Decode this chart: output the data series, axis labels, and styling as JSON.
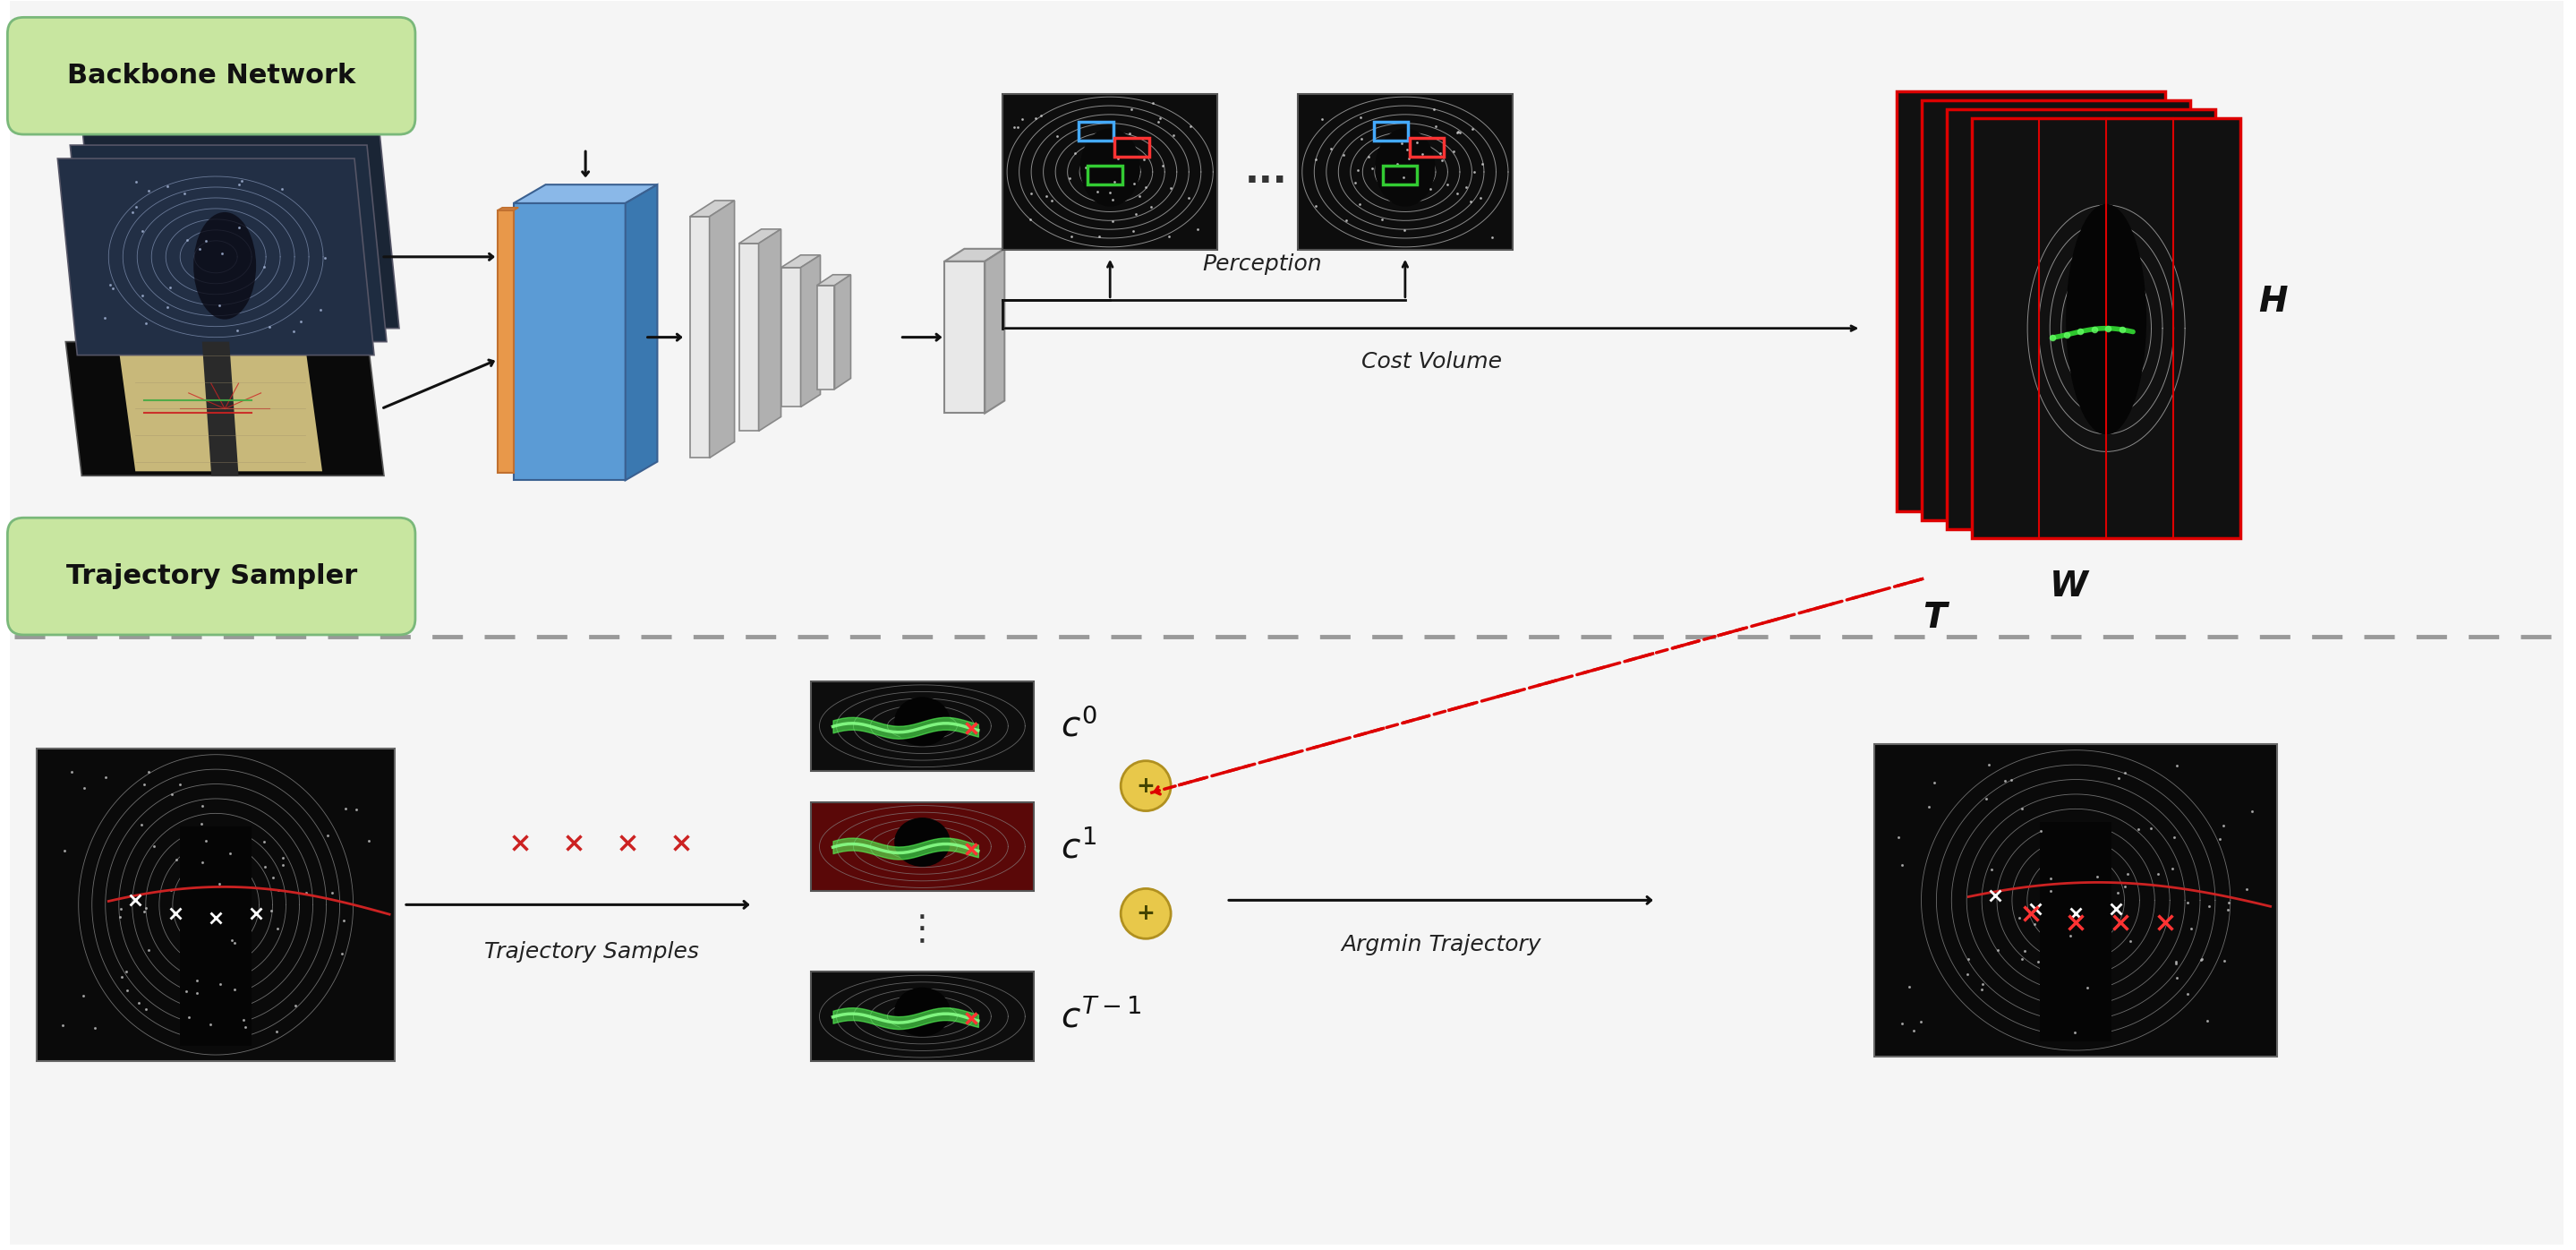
{
  "bg_color": "#ffffff",
  "top_label": "Backbone Network",
  "bottom_label": "Trajectory Sampler",
  "label_bg": "#c8e6a0",
  "label_edge": "#7ab87a",
  "divider_color": "#999999",
  "perception_label": "Perception",
  "cost_volume_label": "Cost Volume",
  "trajectory_samples_label": "Trajectory Samples",
  "argmin_label": "Argmin Trajectory",
  "H_label": "H",
  "W_label": "W",
  "T_label": "T",
  "plus_color": "#e8c84a",
  "plus_edge": "#b09020",
  "arrow_color": "#111111",
  "red_dashed_color": "#dd0000",
  "backbone_orange": "#e8984a",
  "backbone_blue": "#5b9bd5",
  "backbone_blue_top": "#8ab8e8",
  "backbone_blue_side": "#3a78b0",
  "encoder_front": "#e8e8e8",
  "encoder_side": "#b0b0b0",
  "encoder_top": "#d0d0d0",
  "cost_vol_red": "#dd0000"
}
